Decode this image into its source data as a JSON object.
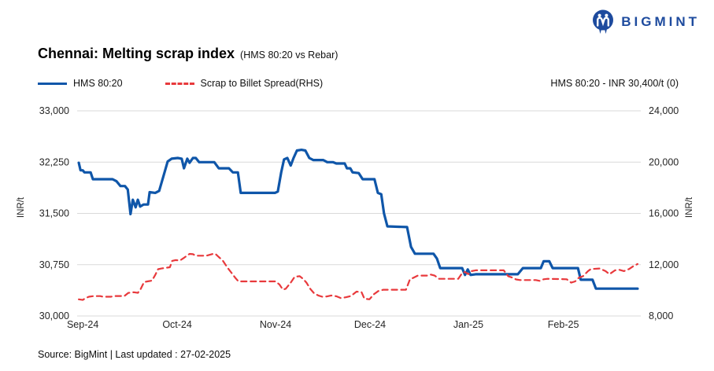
{
  "logo": {
    "text": "BIGMINT",
    "color": "#1e4b9e"
  },
  "title": {
    "main": "Chennai: Melting scrap index",
    "sub": "(HMS 80:20 vs Rebar)"
  },
  "legend": {
    "items": [
      {
        "label": "HMS 80:20",
        "color": "#0f56a9",
        "style": "solid"
      },
      {
        "label": "Scrap to Billet Spread(RHS)",
        "color": "#e8393c",
        "style": "dashed"
      }
    ],
    "annotation": "HMS 80:20 - INR 30,400/t (0)"
  },
  "source": "Source: BigMint | Last updated : 27-02-2025",
  "chart_data": {
    "type": "line",
    "title": "Chennai: Melting scrap index (HMS 80:20 vs Rebar)",
    "grid": true,
    "legend_position": "top-left",
    "left_axis": {
      "label": "INR/t",
      "min": 30000,
      "max": 33000,
      "ticks": [
        "33,000",
        "32,250",
        "31,500",
        "30,750",
        "30,000"
      ]
    },
    "right_axis": {
      "label": "INR/t",
      "min": 8000,
      "max": 24000,
      "ticks": [
        "24,000",
        "20,000",
        "16,000",
        "12,000",
        "8,000"
      ]
    },
    "x_axis": {
      "ticks": [
        {
          "label": "Sep-24",
          "t": 0.01
        },
        {
          "label": "Oct-24",
          "t": 0.178
        },
        {
          "label": "Nov-24",
          "t": 0.353
        },
        {
          "label": "Dec-24",
          "t": 0.521
        },
        {
          "label": "Jan-25",
          "t": 0.696
        },
        {
          "label": "Feb-25",
          "t": 0.865
        }
      ]
    },
    "series": [
      {
        "name": "HMS 80:20",
        "axis": "left",
        "color": "#0f56a9",
        "dash": false,
        "width": 3.2,
        "points": [
          [
            0.003,
            32240
          ],
          [
            0.006,
            32130
          ],
          [
            0.01,
            32130
          ],
          [
            0.013,
            32100
          ],
          [
            0.024,
            32100
          ],
          [
            0.028,
            32000
          ],
          [
            0.063,
            32000
          ],
          [
            0.07,
            31970
          ],
          [
            0.077,
            31900
          ],
          [
            0.085,
            31900
          ],
          [
            0.09,
            31850
          ],
          [
            0.095,
            31490
          ],
          [
            0.099,
            31700
          ],
          [
            0.104,
            31590
          ],
          [
            0.108,
            31700
          ],
          [
            0.112,
            31600
          ],
          [
            0.118,
            31630
          ],
          [
            0.126,
            31630
          ],
          [
            0.129,
            31810
          ],
          [
            0.139,
            31800
          ],
          [
            0.146,
            31830
          ],
          [
            0.154,
            32060
          ],
          [
            0.161,
            32260
          ],
          [
            0.168,
            32300
          ],
          [
            0.179,
            32310
          ],
          [
            0.186,
            32300
          ],
          [
            0.19,
            32160
          ],
          [
            0.196,
            32300
          ],
          [
            0.2,
            32240
          ],
          [
            0.206,
            32310
          ],
          [
            0.211,
            32310
          ],
          [
            0.217,
            32250
          ],
          [
            0.244,
            32250
          ],
          [
            0.252,
            32160
          ],
          [
            0.27,
            32160
          ],
          [
            0.277,
            32100
          ],
          [
            0.286,
            32100
          ],
          [
            0.291,
            31800
          ],
          [
            0.352,
            31800
          ],
          [
            0.357,
            31820
          ],
          [
            0.363,
            32100
          ],
          [
            0.368,
            32290
          ],
          [
            0.374,
            32310
          ],
          [
            0.38,
            32200
          ],
          [
            0.385,
            32310
          ],
          [
            0.391,
            32420
          ],
          [
            0.399,
            32430
          ],
          [
            0.406,
            32420
          ],
          [
            0.413,
            32310
          ],
          [
            0.42,
            32280
          ],
          [
            0.438,
            32280
          ],
          [
            0.445,
            32250
          ],
          [
            0.455,
            32250
          ],
          [
            0.461,
            32230
          ],
          [
            0.476,
            32230
          ],
          [
            0.48,
            32160
          ],
          [
            0.486,
            32160
          ],
          [
            0.49,
            32100
          ],
          [
            0.501,
            32090
          ],
          [
            0.508,
            32000
          ],
          [
            0.529,
            32000
          ],
          [
            0.535,
            31800
          ],
          [
            0.541,
            31780
          ],
          [
            0.546,
            31500
          ],
          [
            0.552,
            31310
          ],
          [
            0.587,
            31300
          ],
          [
            0.594,
            31010
          ],
          [
            0.601,
            30910
          ],
          [
            0.634,
            30910
          ],
          [
            0.64,
            30840
          ],
          [
            0.646,
            30700
          ],
          [
            0.685,
            30700
          ],
          [
            0.69,
            30600
          ],
          [
            0.695,
            30680
          ],
          [
            0.7,
            30600
          ],
          [
            0.709,
            30610
          ],
          [
            0.784,
            30610
          ],
          [
            0.793,
            30700
          ],
          [
            0.825,
            30700
          ],
          [
            0.83,
            30800
          ],
          [
            0.84,
            30800
          ],
          [
            0.846,
            30700
          ],
          [
            0.891,
            30700
          ],
          [
            0.896,
            30530
          ],
          [
            0.917,
            30530
          ],
          [
            0.923,
            30400
          ],
          [
            0.997,
            30400
          ]
        ]
      },
      {
        "name": "Scrap to Billet Spread(RHS)",
        "axis": "right",
        "color": "#e8393c",
        "dash": true,
        "width": 2.2,
        "points": [
          [
            0.003,
            9300
          ],
          [
            0.01,
            9250
          ],
          [
            0.015,
            9400
          ],
          [
            0.021,
            9500
          ],
          [
            0.029,
            9550
          ],
          [
            0.041,
            9550
          ],
          [
            0.046,
            9500
          ],
          [
            0.06,
            9500
          ],
          [
            0.067,
            9560
          ],
          [
            0.084,
            9560
          ],
          [
            0.091,
            9800
          ],
          [
            0.101,
            9850
          ],
          [
            0.108,
            9800
          ],
          [
            0.113,
            10100
          ],
          [
            0.119,
            10650
          ],
          [
            0.125,
            10700
          ],
          [
            0.133,
            10760
          ],
          [
            0.139,
            11200
          ],
          [
            0.144,
            11650
          ],
          [
            0.15,
            11700
          ],
          [
            0.158,
            11760
          ],
          [
            0.165,
            11800
          ],
          [
            0.169,
            12300
          ],
          [
            0.175,
            12360
          ],
          [
            0.183,
            12330
          ],
          [
            0.189,
            12500
          ],
          [
            0.196,
            12720
          ],
          [
            0.2,
            12840
          ],
          [
            0.206,
            12820
          ],
          [
            0.211,
            12700
          ],
          [
            0.23,
            12700
          ],
          [
            0.237,
            12790
          ],
          [
            0.242,
            12850
          ],
          [
            0.246,
            12840
          ],
          [
            0.252,
            12600
          ],
          [
            0.259,
            12330
          ],
          [
            0.267,
            11800
          ],
          [
            0.274,
            11400
          ],
          [
            0.281,
            11000
          ],
          [
            0.287,
            10700
          ],
          [
            0.353,
            10700
          ],
          [
            0.36,
            10450
          ],
          [
            0.366,
            10060
          ],
          [
            0.371,
            10120
          ],
          [
            0.38,
            10600
          ],
          [
            0.387,
            11050
          ],
          [
            0.396,
            11100
          ],
          [
            0.402,
            10900
          ],
          [
            0.408,
            10600
          ],
          [
            0.415,
            10100
          ],
          [
            0.422,
            9750
          ],
          [
            0.429,
            9600
          ],
          [
            0.436,
            9500
          ],
          [
            0.444,
            9520
          ],
          [
            0.452,
            9600
          ],
          [
            0.461,
            9540
          ],
          [
            0.469,
            9400
          ],
          [
            0.478,
            9460
          ],
          [
            0.487,
            9560
          ],
          [
            0.497,
            9900
          ],
          [
            0.506,
            9850
          ],
          [
            0.511,
            9350
          ],
          [
            0.52,
            9300
          ],
          [
            0.528,
            9700
          ],
          [
            0.536,
            9950
          ],
          [
            0.545,
            10050
          ],
          [
            0.585,
            10050
          ],
          [
            0.592,
            10850
          ],
          [
            0.599,
            11000
          ],
          [
            0.606,
            11150
          ],
          [
            0.623,
            11150
          ],
          [
            0.629,
            11230
          ],
          [
            0.636,
            11150
          ],
          [
            0.644,
            10900
          ],
          [
            0.678,
            10900
          ],
          [
            0.685,
            11350
          ],
          [
            0.69,
            11430
          ],
          [
            0.696,
            11260
          ],
          [
            0.702,
            11500
          ],
          [
            0.709,
            11560
          ],
          [
            0.759,
            11560
          ],
          [
            0.767,
            11100
          ],
          [
            0.774,
            11000
          ],
          [
            0.781,
            10850
          ],
          [
            0.788,
            10800
          ],
          [
            0.816,
            10800
          ],
          [
            0.823,
            10740
          ],
          [
            0.83,
            10860
          ],
          [
            0.837,
            10900
          ],
          [
            0.871,
            10860
          ],
          [
            0.879,
            10600
          ],
          [
            0.886,
            10700
          ],
          [
            0.893,
            11000
          ],
          [
            0.9,
            11100
          ],
          [
            0.909,
            11500
          ],
          [
            0.914,
            11660
          ],
          [
            0.93,
            11700
          ],
          [
            0.94,
            11500
          ],
          [
            0.947,
            11260
          ],
          [
            0.957,
            11560
          ],
          [
            0.965,
            11600
          ],
          [
            0.973,
            11500
          ],
          [
            0.982,
            11660
          ],
          [
            0.99,
            11900
          ],
          [
            0.997,
            12050
          ]
        ]
      }
    ]
  }
}
